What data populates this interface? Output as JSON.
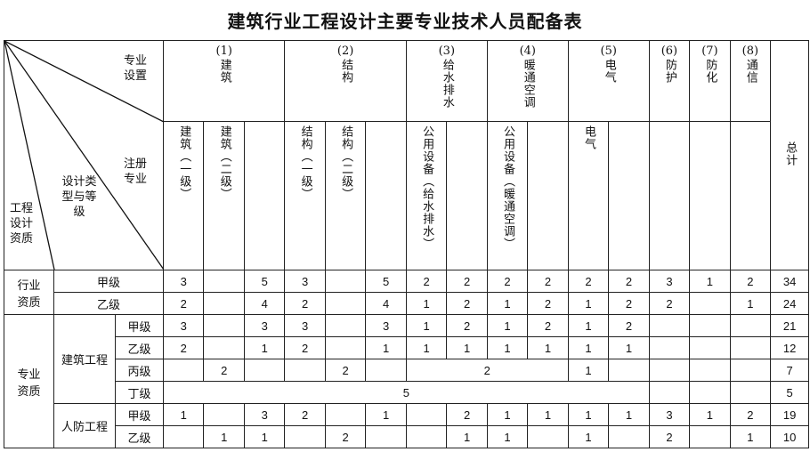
{
  "title": "建筑行业工程设计主要专业技术人员配备表",
  "corner": {
    "specialty_setting": "专业设置",
    "registered_specialty": "注册专业",
    "design_type_grade": "设计类型与等级",
    "qualification": "工程设计资质"
  },
  "groups": [
    {
      "num": "(1)",
      "name": "建筑"
    },
    {
      "num": "(2)",
      "name": "结构"
    },
    {
      "num": "(3)",
      "name": "给水排水"
    },
    {
      "num": "(4)",
      "name": "暖通空调"
    },
    {
      "num": "(5)",
      "name": "电气"
    },
    {
      "num": "(6)",
      "name": "防护"
    },
    {
      "num": "(7)",
      "name": "防化"
    },
    {
      "num": "(8)",
      "name": "通信"
    }
  ],
  "total_label": "总计",
  "sub_headers": [
    "建筑（一级）",
    "建筑（二级）",
    "",
    "结构（一级）",
    "结构（二级）",
    "",
    "公用设备（给水排水）",
    "",
    "公用设备（暖通空调）",
    "",
    "电气",
    "",
    "",
    "",
    ""
  ],
  "row_groups": {
    "industry": "行业资质",
    "specialty": "专业资质",
    "building": "建筑工程",
    "civil_defense": "人防工程"
  },
  "rows": [
    {
      "grade": "甲级",
      "cells": [
        {
          "v": "3"
        },
        {
          "v": ""
        },
        {
          "v": "5"
        },
        {
          "v": "3"
        },
        {
          "v": ""
        },
        {
          "v": "5"
        },
        {
          "v": "2"
        },
        {
          "v": "2"
        },
        {
          "v": "2"
        },
        {
          "v": "2"
        },
        {
          "v": "2"
        },
        {
          "v": "2"
        },
        {
          "v": "3"
        },
        {
          "v": "1"
        },
        {
          "v": "2"
        },
        {
          "v": "34"
        }
      ]
    },
    {
      "grade": "乙级",
      "cells": [
        {
          "v": "2"
        },
        {
          "v": ""
        },
        {
          "v": "4"
        },
        {
          "v": "2"
        },
        {
          "v": ""
        },
        {
          "v": "4"
        },
        {
          "v": "1"
        },
        {
          "v": "2"
        },
        {
          "v": "1"
        },
        {
          "v": "2"
        },
        {
          "v": "1"
        },
        {
          "v": "2"
        },
        {
          "v": "2"
        },
        {
          "v": ""
        },
        {
          "v": "1"
        },
        {
          "v": "24"
        }
      ]
    },
    {
      "grade": "甲级",
      "cells": [
        {
          "v": "3"
        },
        {
          "v": ""
        },
        {
          "v": "3"
        },
        {
          "v": "3"
        },
        {
          "v": ""
        },
        {
          "v": "3"
        },
        {
          "v": "1"
        },
        {
          "v": "2"
        },
        {
          "v": "1"
        },
        {
          "v": "2"
        },
        {
          "v": "1"
        },
        {
          "v": "2"
        },
        {
          "v": ""
        },
        {
          "v": ""
        },
        {
          "v": ""
        },
        {
          "v": "21"
        }
      ]
    },
    {
      "grade": "乙级",
      "cells": [
        {
          "v": "2"
        },
        {
          "v": ""
        },
        {
          "v": "1"
        },
        {
          "v": "2"
        },
        {
          "v": ""
        },
        {
          "v": "1"
        },
        {
          "v": "1"
        },
        {
          "v": "1"
        },
        {
          "v": "1"
        },
        {
          "v": "1"
        },
        {
          "v": "1"
        },
        {
          "v": "1"
        },
        {
          "v": ""
        },
        {
          "v": ""
        },
        {
          "v": ""
        },
        {
          "v": "12"
        }
      ]
    },
    {
      "grade": "丙级",
      "cells": [
        {
          "v": ""
        },
        {
          "v": "2"
        },
        {
          "v": ""
        },
        {
          "v": ""
        },
        {
          "v": "2"
        },
        {
          "v": ""
        },
        {
          "v": "2",
          "span": 4
        },
        {
          "v": "1"
        },
        {
          "v": ""
        },
        {
          "v": ""
        },
        {
          "v": ""
        },
        {
          "v": ""
        },
        {
          "v": "7"
        }
      ]
    },
    {
      "grade": "丁级",
      "cells": [
        {
          "v": "5",
          "span": 12
        },
        {
          "v": ""
        },
        {
          "v": ""
        },
        {
          "v": ""
        },
        {
          "v": "5"
        }
      ]
    },
    {
      "grade": "甲级",
      "cells": [
        {
          "v": "1"
        },
        {
          "v": ""
        },
        {
          "v": "3"
        },
        {
          "v": "2"
        },
        {
          "v": ""
        },
        {
          "v": "1"
        },
        {
          "v": ""
        },
        {
          "v": "2"
        },
        {
          "v": "1"
        },
        {
          "v": "1"
        },
        {
          "v": "1"
        },
        {
          "v": "1"
        },
        {
          "v": "3"
        },
        {
          "v": "1"
        },
        {
          "v": "2"
        },
        {
          "v": "19"
        }
      ]
    },
    {
      "grade": "乙级",
      "cells": [
        {
          "v": ""
        },
        {
          "v": "1"
        },
        {
          "v": "1"
        },
        {
          "v": ""
        },
        {
          "v": "2"
        },
        {
          "v": ""
        },
        {
          "v": ""
        },
        {
          "v": "1"
        },
        {
          "v": "1"
        },
        {
          "v": ""
        },
        {
          "v": "1"
        },
        {
          "v": ""
        },
        {
          "v": "2"
        },
        {
          "v": ""
        },
        {
          "v": "1"
        },
        {
          "v": "10"
        }
      ]
    }
  ]
}
